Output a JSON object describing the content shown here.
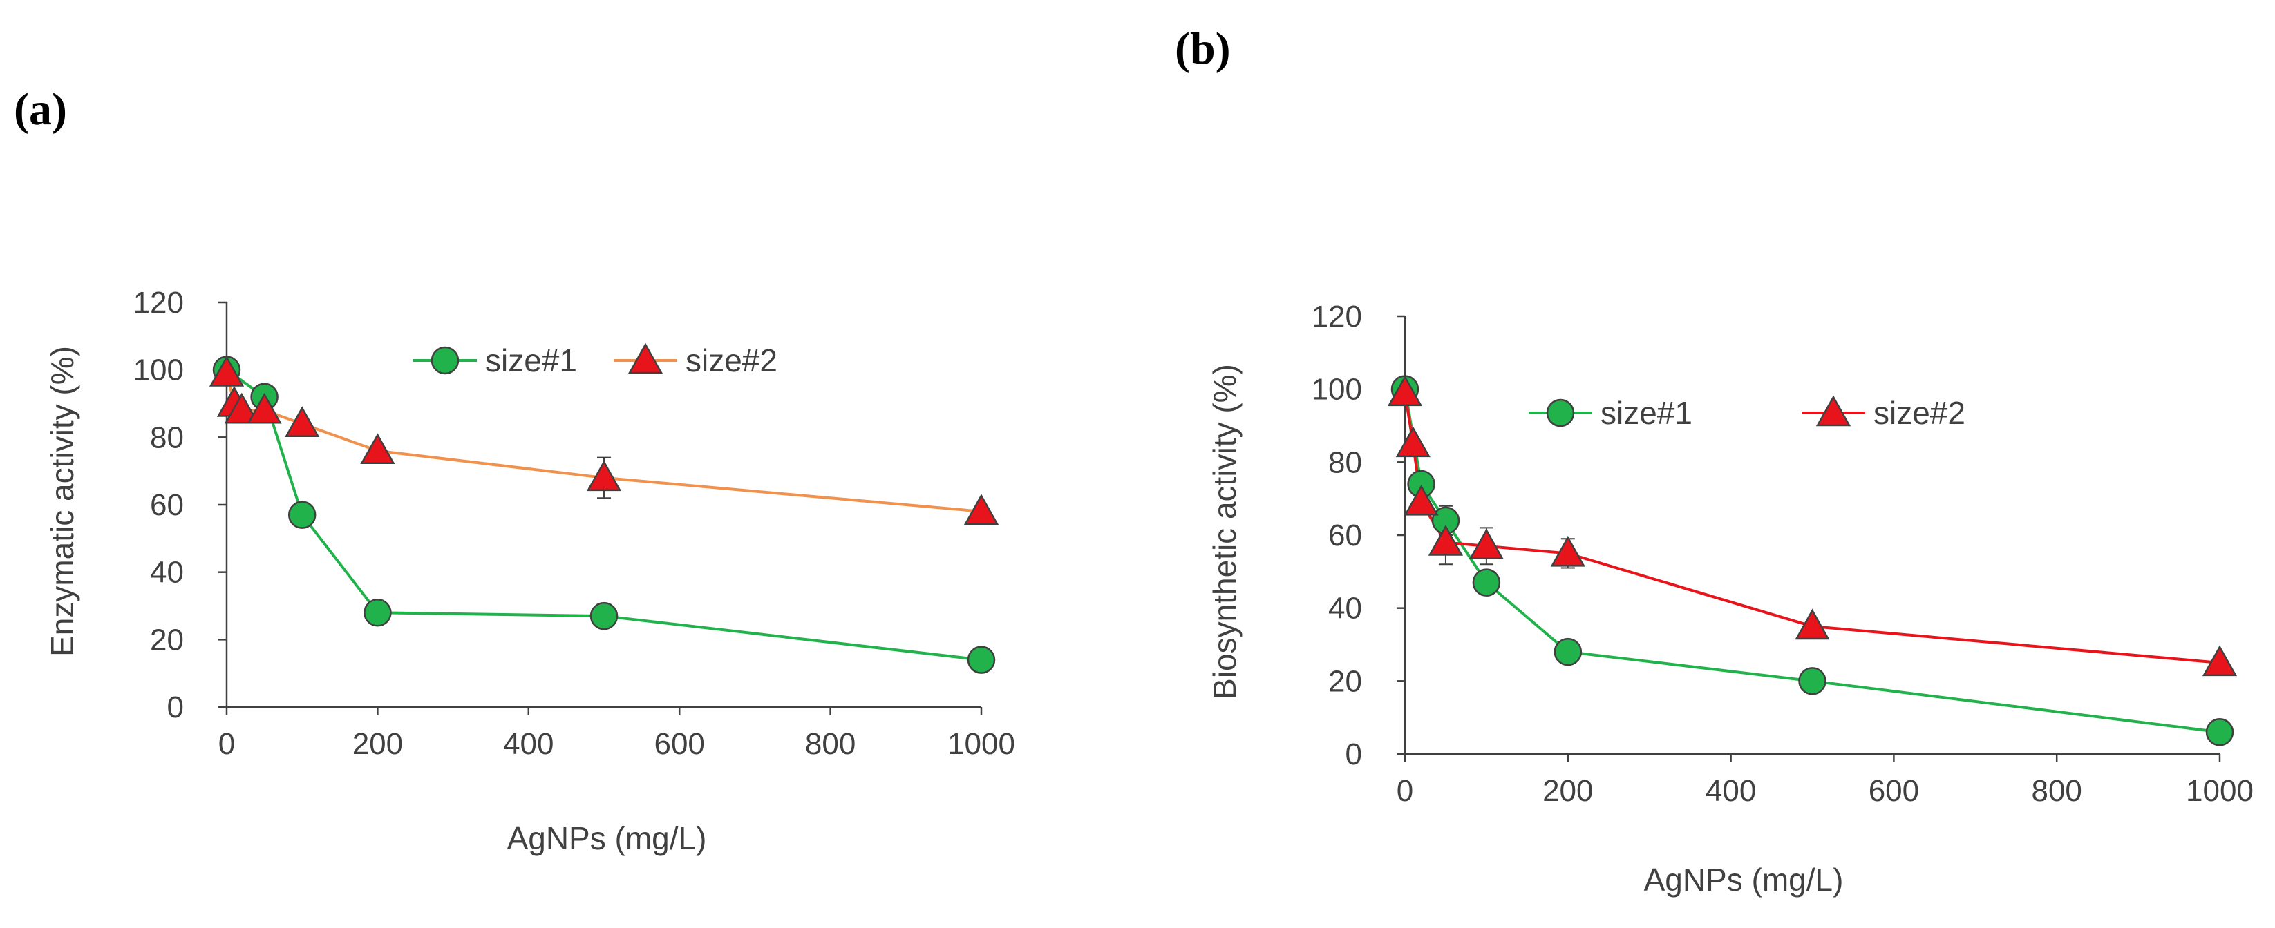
{
  "chart_data": [
    {
      "panel_label": "(a)",
      "type": "line",
      "xlabel": "AgNPs (mg/L)",
      "ylabel": "Enzymatic activity (%)",
      "xlim": [
        0,
        1000
      ],
      "ylim": [
        0,
        120
      ],
      "xticks": [
        "0",
        "200",
        "400",
        "600",
        "800",
        "1000"
      ],
      "yticks": [
        "0",
        "20",
        "40",
        "60",
        "80",
        "100",
        "120"
      ],
      "grid": false,
      "legend_position": "top-center",
      "series": [
        {
          "name": "size#1",
          "marker": "circle",
          "color": "#21b24b",
          "line_color": "#21b24b",
          "points": [
            {
              "x": 0,
              "y": 100,
              "err": 0
            },
            {
              "x": 50,
              "y": 92,
              "err": 0
            },
            {
              "x": 100,
              "y": 57,
              "err": 0
            },
            {
              "x": 200,
              "y": 28,
              "err": 0
            },
            {
              "x": 500,
              "y": 27,
              "err": 0
            },
            {
              "x": 1000,
              "y": 14,
              "err": 0
            }
          ]
        },
        {
          "name": "size#2",
          "marker": "triangle",
          "color": "#e8141b",
          "line_color": "#f0924e",
          "points": [
            {
              "x": 0,
              "y": 99,
              "err": 0
            },
            {
              "x": 10,
              "y": 90,
              "err": 0
            },
            {
              "x": 20,
              "y": 88,
              "err": 0
            },
            {
              "x": 50,
              "y": 88,
              "err": 0
            },
            {
              "x": 100,
              "y": 84,
              "err": 0
            },
            {
              "x": 200,
              "y": 76,
              "err": 0
            },
            {
              "x": 500,
              "y": 68,
              "err": 6
            },
            {
              "x": 1000,
              "y": 58,
              "err": 0
            }
          ]
        }
      ]
    },
    {
      "panel_label": "(b)",
      "type": "line",
      "xlabel": "AgNPs (mg/L)",
      "ylabel": "Biosynthetic activity (%)",
      "xlim": [
        0,
        1000
      ],
      "ylim": [
        0,
        120
      ],
      "xticks": [
        "0",
        "200",
        "400",
        "600",
        "800",
        "1000"
      ],
      "yticks": [
        "0",
        "20",
        "40",
        "60",
        "80",
        "100",
        "120"
      ],
      "grid": false,
      "legend_position": "top-center",
      "series": [
        {
          "name": "size#1",
          "marker": "circle",
          "color": "#21b24b",
          "line_color": "#21b24b",
          "points": [
            {
              "x": 0,
              "y": 100,
              "err": 0
            },
            {
              "x": 20,
              "y": 74,
              "err": 0
            },
            {
              "x": 50,
              "y": 64,
              "err": 4
            },
            {
              "x": 100,
              "y": 47,
              "err": 0
            },
            {
              "x": 200,
              "y": 28,
              "err": 0
            },
            {
              "x": 500,
              "y": 20,
              "err": 0
            },
            {
              "x": 1000,
              "y": 6,
              "err": 0
            }
          ]
        },
        {
          "name": "size#2",
          "marker": "triangle",
          "color": "#e8141b",
          "line_color": "#e8141b",
          "points": [
            {
              "x": 0,
              "y": 99,
              "err": 0
            },
            {
              "x": 10,
              "y": 85,
              "err": 0
            },
            {
              "x": 20,
              "y": 69,
              "err": 0
            },
            {
              "x": 50,
              "y": 58,
              "err": 6
            },
            {
              "x": 100,
              "y": 57,
              "err": 5
            },
            {
              "x": 200,
              "y": 55,
              "err": 4
            },
            {
              "x": 500,
              "y": 35,
              "err": 0
            },
            {
              "x": 1000,
              "y": 25,
              "err": 0
            }
          ]
        }
      ]
    }
  ]
}
